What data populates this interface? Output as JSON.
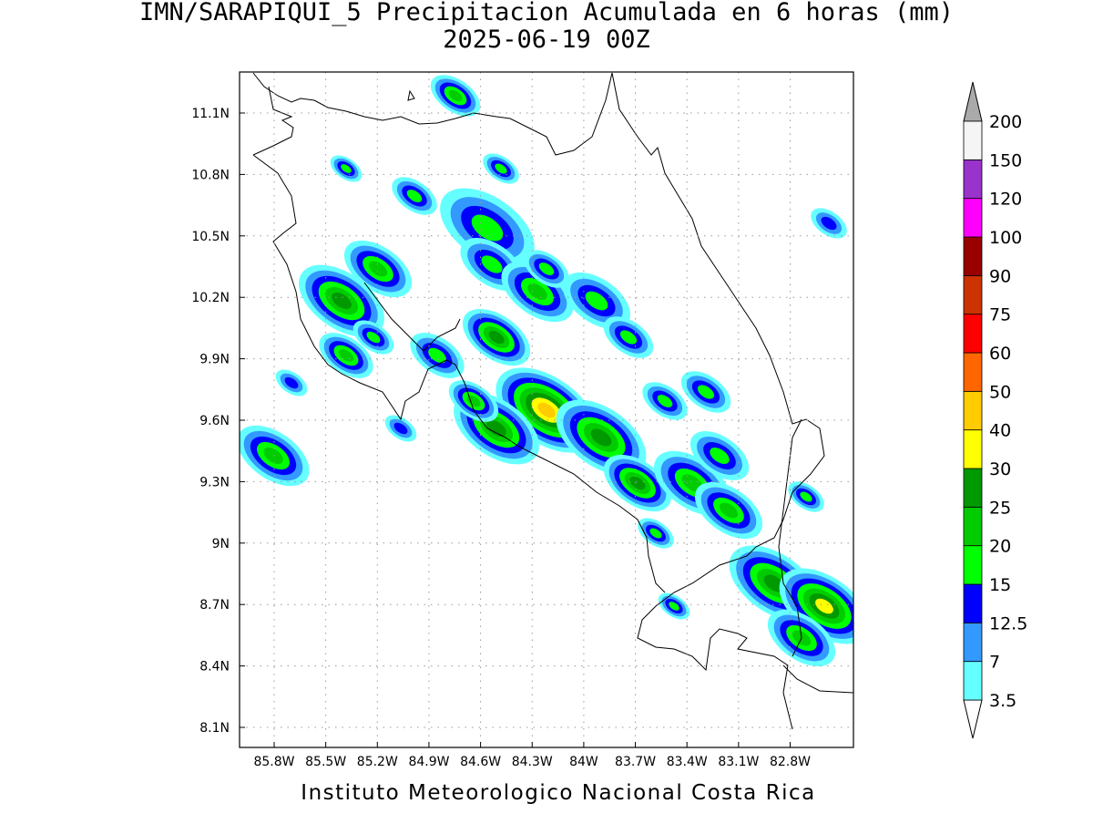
{
  "title": "IMN/SARAPIQUI_5 Precipitacion Acumulada en 6 horas (mm)",
  "subtitle": "2025-06-19 00Z",
  "footer": "Instituto Meteorologico Nacional Costa Rica",
  "x_ticks": [
    "85.8W",
    "85.5W",
    "85.2W",
    "84.9W",
    "84.6W",
    "84.3W",
    "84W",
    "83.7W",
    "83.4W",
    "83.1W",
    "82.8W"
  ],
  "y_ticks": [
    "11.1N",
    "10.8N",
    "10.5N",
    "10.2N",
    "9.9N",
    "9.6N",
    "9.3N",
    "9N",
    "8.7N",
    "8.4N",
    "8.1N"
  ],
  "colorbar": {
    "labels": [
      "3.5",
      "7",
      "12.5",
      "15",
      "20",
      "25",
      "30",
      "40",
      "50",
      "60",
      "75",
      "90",
      "100",
      "120",
      "150",
      "200"
    ],
    "colors": [
      "#66ffff",
      "#3399ff",
      "#0000ff",
      "#00ff00",
      "#00cc00",
      "#009900",
      "#ffff00",
      "#ffcc00",
      "#ff6600",
      "#ff0000",
      "#cc3300",
      "#990000",
      "#ff00ff",
      "#9933cc",
      "#f5f5f5"
    ],
    "under_color": "#ffffff",
    "over_color": "#aaaaaa"
  }
}
